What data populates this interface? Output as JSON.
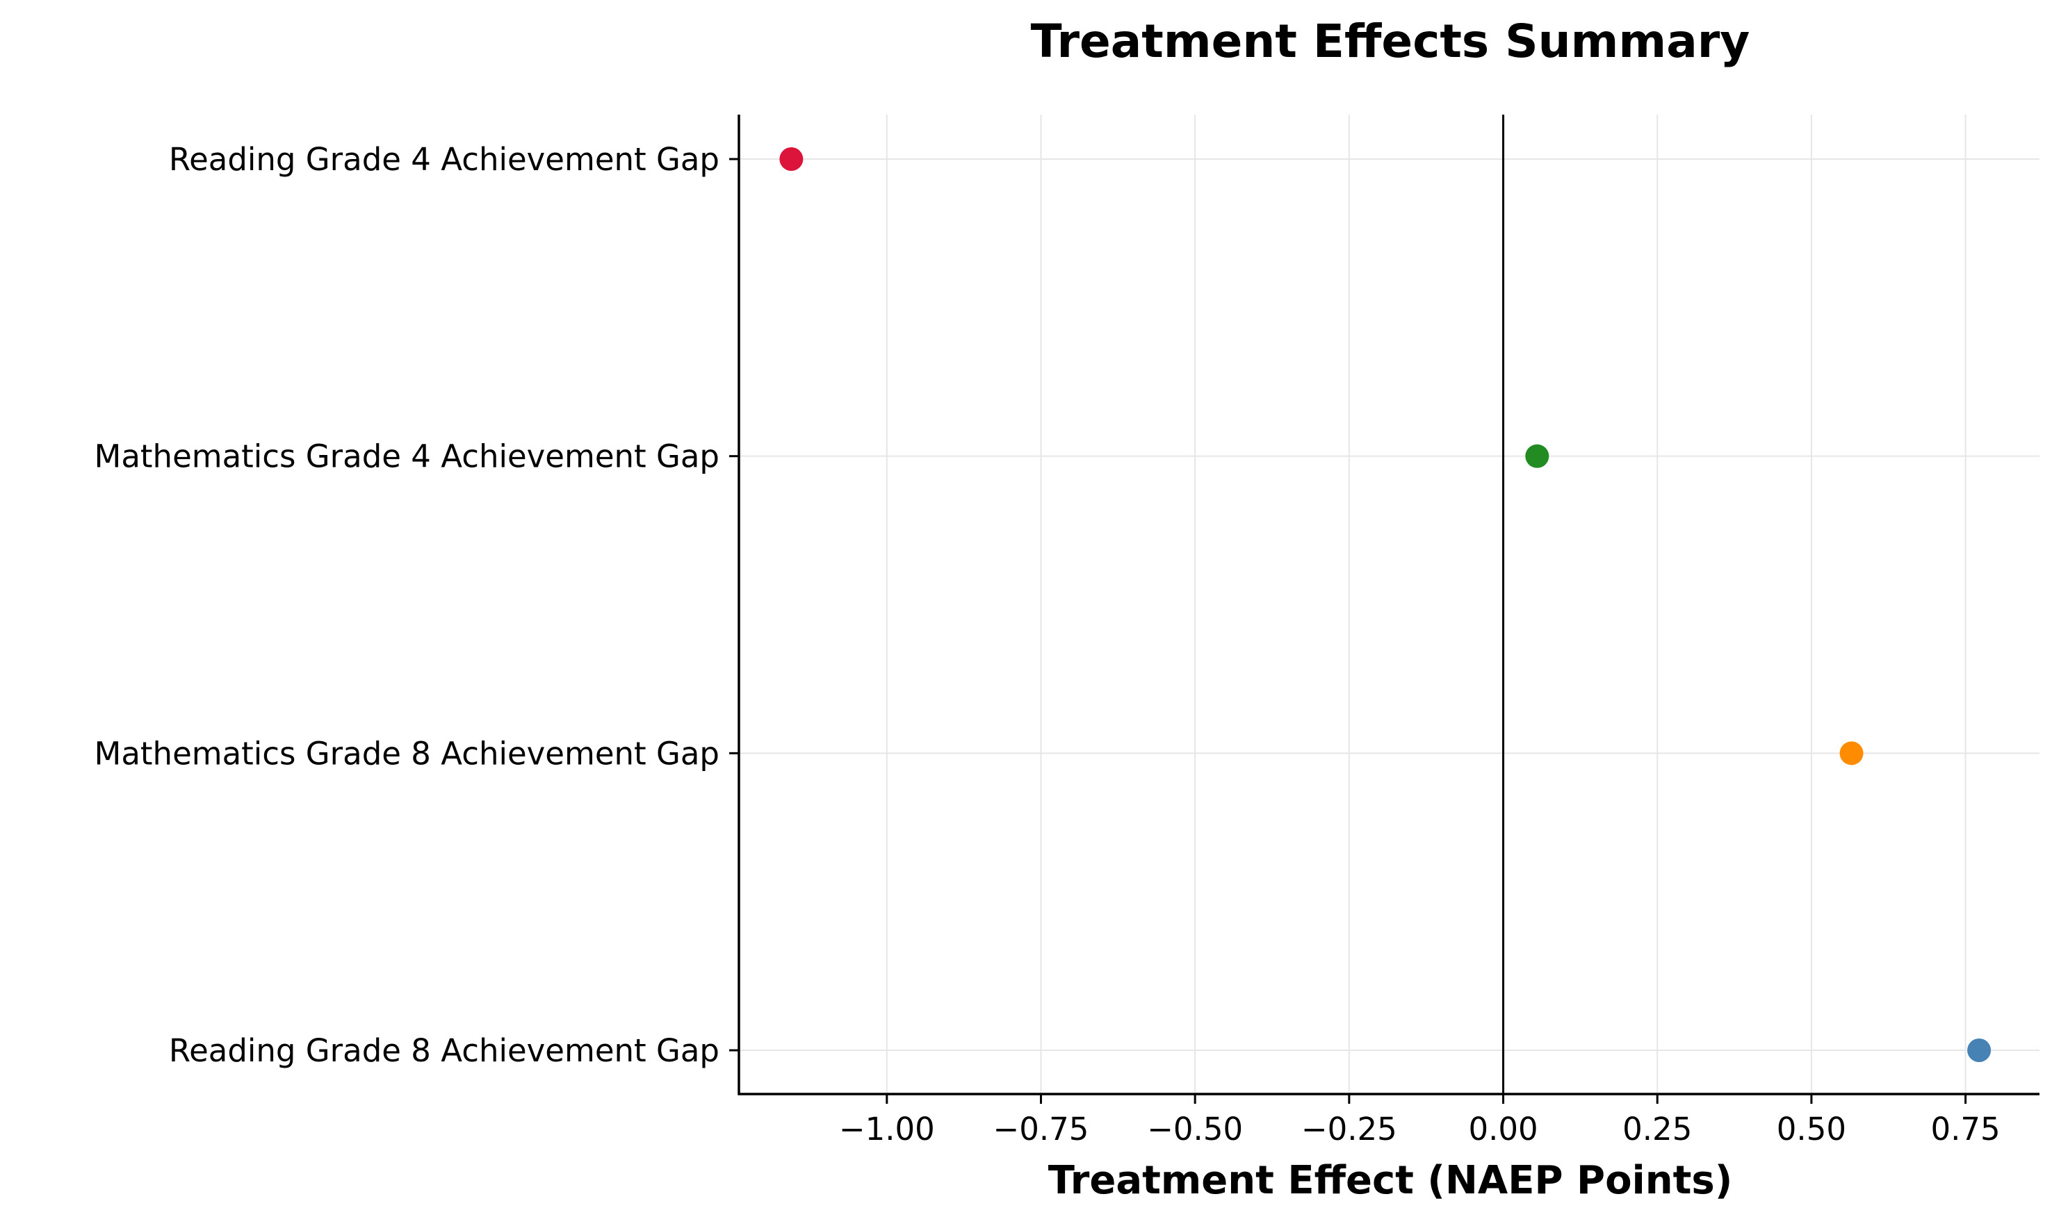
{
  "chart_data": {
    "type": "scatter",
    "title": "Treatment Effects Summary",
    "xlabel": "Treatment Effect (NAEP Points)",
    "ylabel": "",
    "xlim": [
      -1.24,
      0.87
    ],
    "xticks": [
      -1.0,
      -0.75,
      -0.5,
      -0.25,
      0.0,
      0.25,
      0.5,
      0.75
    ],
    "xtick_labels": [
      "−1.00",
      "−0.75",
      "−0.50",
      "−0.25",
      "0.00",
      "0.25",
      "0.50",
      "0.75"
    ],
    "grid": true,
    "reference_line_x": 0,
    "categories": [
      "Reading Grade 4 Achievement Gap",
      "Mathematics Grade 4 Achievement Gap",
      "Mathematics Grade 8 Achievement Gap",
      "Reading Grade 8 Achievement Gap"
    ],
    "values": [
      -1.155,
      0.055,
      0.565,
      0.772
    ],
    "colors": [
      "#dc143c",
      "#228b22",
      "#ff8c00",
      "#4682b4"
    ]
  }
}
